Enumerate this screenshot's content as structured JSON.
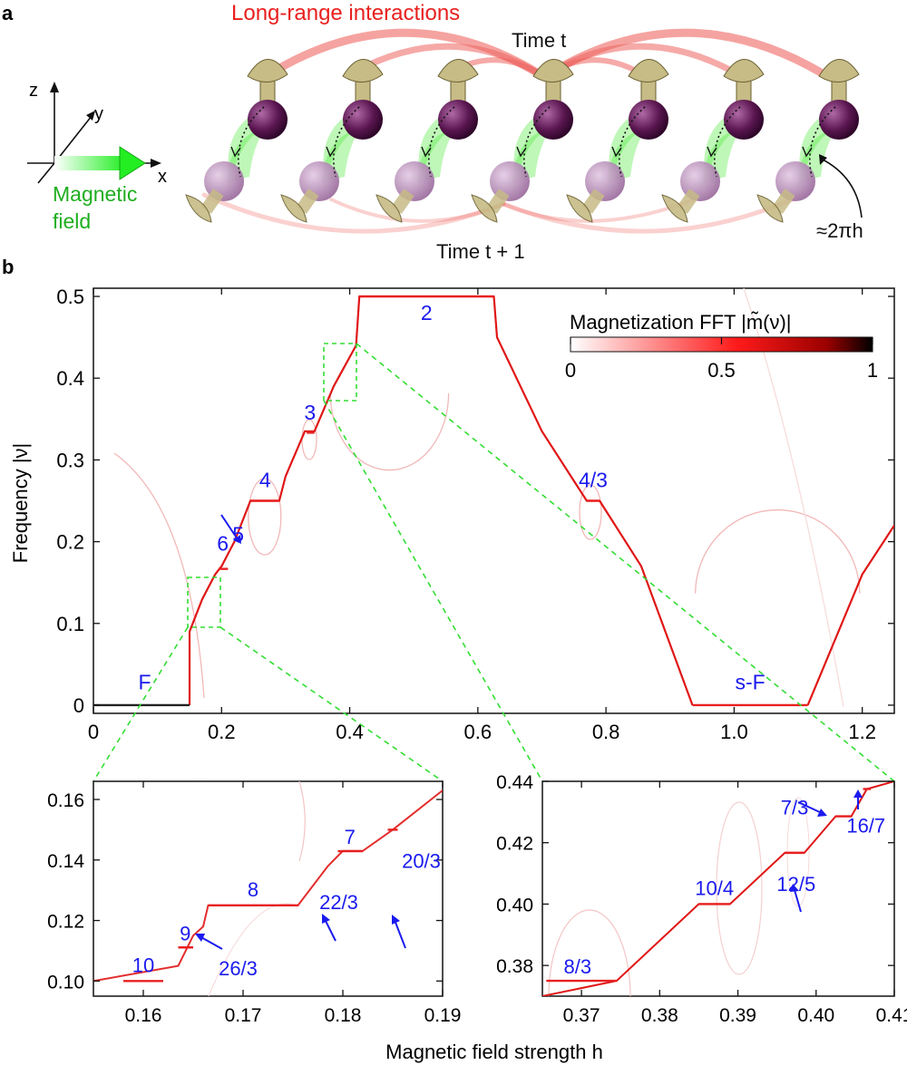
{
  "panel_labels": {
    "a": "a",
    "b": "b"
  },
  "panel_a": {
    "long_range_label": "Long-range interactions",
    "time_t_label": "Time t",
    "time_t1_label": "Time t + 1",
    "rotation_angle_label": "≈2πh",
    "axis_labels": {
      "z": "z",
      "y": "y",
      "x": "x"
    },
    "field_label_line1": "Magnetic",
    "field_label_line2": "field",
    "spin_count": 7,
    "colors": {
      "arcs": "#e8322c",
      "field": "#22dd22",
      "top_sphere": "#5a1650",
      "bottom_sphere": "#a47aa6",
      "arrow": "#c7bb86",
      "rotation_wedge": "#7fef72"
    }
  },
  "chart_data": [
    {
      "id": "main",
      "type": "heatmap",
      "xlabel": "",
      "ylabel": "Frequency |ν|",
      "xlim": [
        0,
        1.25
      ],
      "ylim": [
        -0.01,
        0.51
      ],
      "xticks": [
        0,
        0.2,
        0.4,
        0.6,
        0.8,
        1.0,
        1.2
      ],
      "xtick_labels": [
        "0",
        "0.2",
        "0.4",
        "0.6",
        "0.8",
        "1.0",
        "1.2"
      ],
      "yticks": [
        0,
        0.1,
        0.2,
        0.3,
        0.4,
        0.5
      ],
      "ytick_labels": [
        "0",
        "0.1",
        "0.2",
        "0.3",
        "0.4",
        "0.5"
      ],
      "colorbar": {
        "label": "Magnetization FFT |m̃(ν)|",
        "ticks": [
          0,
          0.5,
          1
        ],
        "tick_labels": [
          "0",
          "0.5",
          "1"
        ],
        "range": [
          0,
          1
        ],
        "colors": [
          "#ffffff",
          "#ff0000",
          "#000000"
        ]
      },
      "main_trace": [
        [
          0.15,
          0.0
        ],
        [
          0.15,
          0.09
        ],
        [
          0.16,
          0.11
        ],
        [
          0.17,
          0.13
        ],
        [
          0.19,
          0.16
        ],
        [
          0.2,
          0.17
        ],
        [
          0.22,
          0.2
        ],
        [
          0.245,
          0.25
        ],
        [
          0.29,
          0.25
        ],
        [
          0.3,
          0.28
        ],
        [
          0.33,
          0.335
        ],
        [
          0.345,
          0.335
        ],
        [
          0.375,
          0.39
        ],
        [
          0.41,
          0.44
        ],
        [
          0.415,
          0.5
        ],
        [
          0.625,
          0.5
        ],
        [
          0.63,
          0.45
        ],
        [
          0.7,
          0.335
        ],
        [
          0.77,
          0.25
        ],
        [
          0.79,
          0.25
        ],
        [
          0.855,
          0.17
        ],
        [
          0.935,
          0.0
        ]
      ],
      "right_trace": [
        [
          1.115,
          0.0
        ],
        [
          1.2,
          0.16
        ],
        [
          1.25,
          0.22
        ]
      ],
      "plateaus": [
        {
          "label": "F",
          "h_start": 0.0,
          "h_end": 0.15,
          "freq": 0.0,
          "color": "#222222"
        },
        {
          "label": "6",
          "h_start": 0.195,
          "h_end": 0.21,
          "freq": 0.1667
        },
        {
          "label": "4",
          "h_start": 0.245,
          "h_end": 0.29,
          "freq": 0.25
        },
        {
          "label": "3",
          "h_start": 0.333,
          "h_end": 0.345,
          "freq": 0.3333
        },
        {
          "label": "2",
          "h_start": 0.415,
          "h_end": 0.625,
          "freq": 0.5
        },
        {
          "label": "4/3",
          "h_start": 0.77,
          "h_end": 0.79,
          "freq": 0.25
        },
        {
          "label": "s-F",
          "h_start": 0.935,
          "h_end": 1.115,
          "freq": 0.0
        }
      ],
      "annotations": [
        {
          "label": "5",
          "h": 0.226,
          "freq": 0.2
        },
        {
          "label": "F",
          "h": 0.08,
          "freq": 0.015
        },
        {
          "label": "6",
          "h": 0.202,
          "freq": 0.18
        },
        {
          "label": "4",
          "h": 0.268,
          "freq": 0.262
        },
        {
          "label": "3",
          "h": 0.338,
          "freq": 0.345
        },
        {
          "label": "2",
          "h": 0.52,
          "freq": 0.48
        },
        {
          "label": "4/3",
          "h": 0.78,
          "freq": 0.262
        },
        {
          "label": "s-F",
          "h": 1.025,
          "freq": 0.015
        }
      ]
    },
    {
      "id": "zoom_left",
      "type": "heatmap",
      "xlabel": "Magnetic field strength h",
      "xlim": [
        0.155,
        0.19
      ],
      "ylim": [
        0.095,
        0.166
      ],
      "xticks": [
        0.16,
        0.17,
        0.18,
        0.19
      ],
      "xtick_labels": [
        "0.16",
        "0.17",
        "0.18",
        "0.19"
      ],
      "yticks": [
        0.1,
        0.12,
        0.14,
        0.16
      ],
      "ytick_labels": [
        "0.10",
        "0.12",
        "0.14",
        "0.16"
      ],
      "trace": [
        [
          0.155,
          0.1
        ],
        [
          0.1635,
          0.105
        ],
        [
          0.165,
          0.115
        ],
        [
          0.166,
          0.118
        ],
        [
          0.1665,
          0.125
        ],
        [
          0.1755,
          0.125
        ],
        [
          0.1785,
          0.138
        ],
        [
          0.18,
          0.143
        ],
        [
          0.182,
          0.143
        ],
        [
          0.185,
          0.15
        ],
        [
          0.19,
          0.163
        ]
      ],
      "plateaus": [
        {
          "label": "10",
          "h_start": 0.158,
          "h_end": 0.162,
          "freq": 0.1
        },
        {
          "label": "9",
          "h_start": 0.1635,
          "h_end": 0.165,
          "freq": 0.1111
        },
        {
          "label": "8",
          "h_start": 0.1665,
          "h_end": 0.1755,
          "freq": 0.125
        },
        {
          "label": "7",
          "h_start": 0.1795,
          "h_end": 0.182,
          "freq": 0.1429
        },
        {
          "label": "20/3",
          "h_start": 0.1845,
          "h_end": 0.1855,
          "freq": 0.15
        }
      ],
      "annotations": [
        {
          "label": "10",
          "h": 0.16,
          "freq": 0.1
        },
        {
          "label": "9",
          "h": 0.1642,
          "freq": 0.1111
        },
        {
          "label": "26/3",
          "h": 0.1675,
          "freq": 0.1154
        },
        {
          "label": "8",
          "h": 0.171,
          "freq": 0.125
        },
        {
          "label": "22/3",
          "h": 0.1805,
          "freq": 0.1364
        },
        {
          "label": "7",
          "h": 0.1807,
          "freq": 0.1429
        },
        {
          "label": "20/3",
          "h": 0.1875,
          "freq": 0.15
        }
      ]
    },
    {
      "id": "zoom_right",
      "type": "heatmap",
      "xlabel": "Magnetic field strength h",
      "xlim": [
        0.365,
        0.41
      ],
      "ylim": [
        0.37,
        0.44
      ],
      "xticks": [
        0.37,
        0.38,
        0.39,
        0.4,
        0.41
      ],
      "xtick_labels": [
        "0.37",
        "0.38",
        "0.39",
        "0.40",
        "0.41"
      ],
      "yticks": [
        0.38,
        0.4,
        0.42,
        0.44
      ],
      "ytick_labels": [
        "0.38",
        "0.40",
        "0.42",
        "0.44"
      ],
      "trace": [
        [
          0.365,
          0.37
        ],
        [
          0.3745,
          0.375
        ],
        [
          0.385,
          0.4
        ],
        [
          0.389,
          0.4
        ],
        [
          0.396,
          0.4167
        ],
        [
          0.3985,
          0.4167
        ],
        [
          0.4025,
          0.4286
        ],
        [
          0.4045,
          0.4286
        ],
        [
          0.4065,
          0.4375
        ],
        [
          0.41,
          0.44
        ]
      ],
      "plateaus": [
        {
          "label": "8/3",
          "h_start": 0.3655,
          "h_end": 0.3745,
          "freq": 0.375
        },
        {
          "label": "10/4",
          "h_start": 0.385,
          "h_end": 0.389,
          "freq": 0.4
        },
        {
          "label": "12/5",
          "h_start": 0.396,
          "h_end": 0.3985,
          "freq": 0.4167
        },
        {
          "label": "7/3",
          "h_start": 0.4025,
          "h_end": 0.4045,
          "freq": 0.4286
        },
        {
          "label": "16/7",
          "h_start": 0.406,
          "h_end": 0.407,
          "freq": 0.4375
        }
      ],
      "annotations": [
        {
          "label": "8/3",
          "h": 0.3695,
          "freq": 0.375
        },
        {
          "label": "10/4",
          "h": 0.387,
          "freq": 0.4
        },
        {
          "label": "12/5",
          "h": 0.4,
          "freq": 0.4167
        },
        {
          "label": "7/3",
          "h": 0.4005,
          "freq": 0.4286
        },
        {
          "label": "16/7",
          "h": 0.408,
          "freq": 0.4375
        }
      ]
    }
  ],
  "shared_xlabel": "Magnetic field strength h",
  "colors": {
    "trace": "#e01616",
    "plateau": "#e82020",
    "label": "#1a1aee",
    "zoom_box": "#33dd33"
  }
}
